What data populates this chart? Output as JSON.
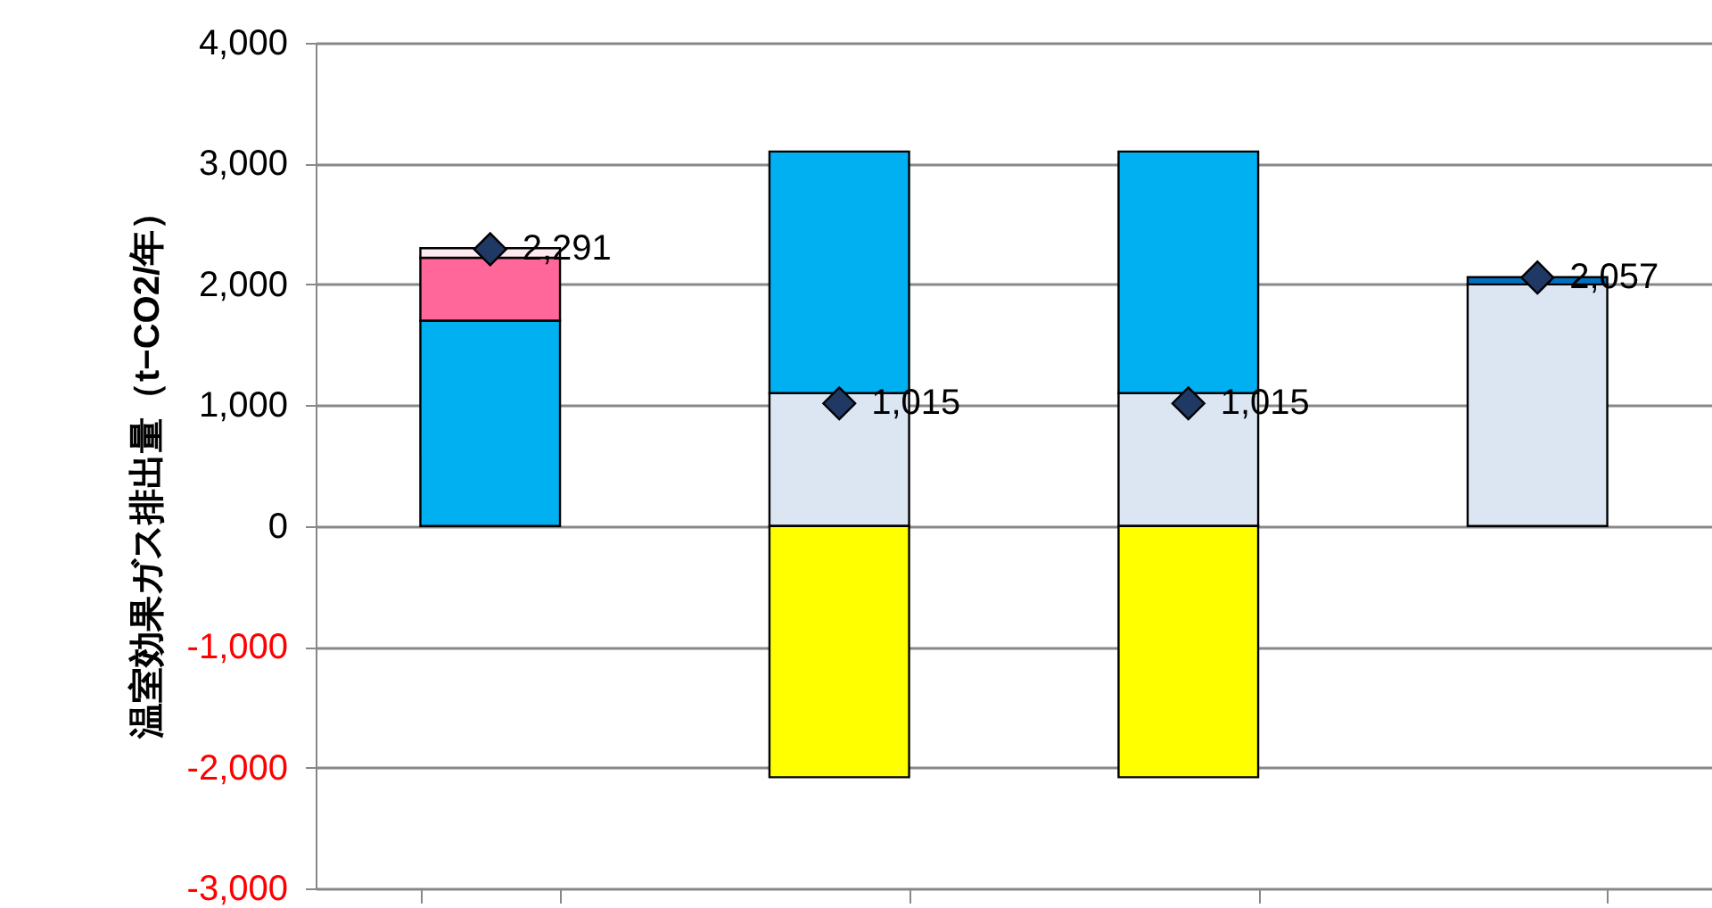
{
  "chart_data": {
    "type": "bar",
    "stacked": true,
    "ylabel": "温室効果ガス排出量（t−CO2/年）",
    "categories": [
      null,
      null,
      null,
      null
    ],
    "series": [
      {
        "color": "#dce6f2",
        "values": [
          null,
          1100,
          1100,
          2000
        ]
      },
      {
        "color": "#00b0f0",
        "values": [
          1700,
          2000,
          2000,
          null
        ]
      },
      {
        "color": "#ff6699",
        "values": [
          520,
          null,
          null,
          null
        ]
      },
      {
        "color": "#fde9f0",
        "values": [
          80,
          null,
          null,
          null
        ]
      },
      {
        "color": "#0070c0",
        "values": [
          null,
          null,
          null,
          60
        ]
      },
      {
        "color": "#ffff00",
        "values": [
          null,
          -2080,
          -2080,
          null
        ]
      },
      {
        "type": "scatter",
        "marker": "diamond",
        "color": "#1f3864",
        "values": [
          2291,
          1015,
          1015,
          2057
        ],
        "value_labels": [
          "2,291",
          "1,015",
          "1,015",
          "2,057"
        ]
      }
    ],
    "ylim": [
      -3000,
      4000
    ],
    "yticks": [
      {
        "value": -3000,
        "label": "-3,000"
      },
      {
        "value": -2000,
        "label": "-2,000"
      },
      {
        "value": -1000,
        "label": "-1,000"
      },
      0,
      {
        "value": 1000,
        "label": "1,000"
      },
      {
        "value": 2000,
        "label": "2,000"
      },
      {
        "value": 3000,
        "label": "3,000"
      },
      {
        "value": 4000,
        "label": "4,000"
      }
    ],
    "grid": "y",
    "tick_labels": "y"
  }
}
